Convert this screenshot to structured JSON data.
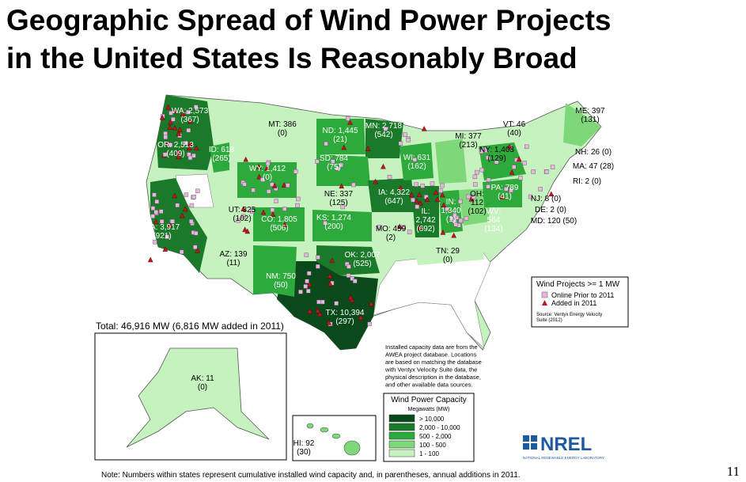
{
  "title_lines": [
    "Geographic Spread of Wind Power Projects",
    "in the United States Is Reasonably Broad"
  ],
  "total": "Total:  46,916 MW (6,816 MW added in 2011)",
  "states": [
    {
      "lines": [
        "WA: 2,573",
        "(367)"
      ]
    },
    {
      "lines": [
        "OR: 2,513",
        "(409)"
      ]
    },
    {
      "lines": [
        "ID: 618",
        "(265)"
      ]
    },
    {
      "lines": [
        "MT: 386",
        "(0)"
      ]
    },
    {
      "lines": [
        "WY: 1,412",
        "(0)"
      ]
    },
    {
      "lines": [
        "ND: 1,445",
        "(21)"
      ]
    },
    {
      "lines": [
        "MN: 2,718",
        "(542)"
      ]
    },
    {
      "lines": [
        "SD: 784",
        "(75)"
      ]
    },
    {
      "lines": [
        "WI: 631",
        "(162)"
      ]
    },
    {
      "lines": [
        "MI: 377",
        "(213)"
      ]
    },
    {
      "lines": [
        "NY: 1,403",
        "(129)"
      ]
    },
    {
      "lines": [
        "VT: 46",
        "(40)"
      ]
    },
    {
      "lines": [
        "ME: 397",
        "(131)"
      ]
    },
    {
      "lines": [
        "NH: 26 (0)"
      ]
    },
    {
      "lines": [
        "MA: 47 (28)"
      ]
    },
    {
      "lines": [
        "RI: 2 (0)"
      ]
    },
    {
      "lines": [
        "NJ: 8 (0)"
      ]
    },
    {
      "lines": [
        "DE: 2 (0)"
      ]
    },
    {
      "lines": [
        "MD: 120 (50)"
      ]
    },
    {
      "lines": [
        "PA: 789",
        "(41)"
      ]
    },
    {
      "lines": [
        "WV:",
        "564",
        "(134)"
      ]
    },
    {
      "lines": [
        "OH:",
        "112",
        "(102)"
      ]
    },
    {
      "lines": [
        "IN:",
        "1,340",
        "(1)"
      ]
    },
    {
      "lines": [
        "IL:",
        "2,742",
        "(692)"
      ]
    },
    {
      "lines": [
        "IA: 4,322",
        "(647)"
      ]
    },
    {
      "lines": [
        "NE: 337",
        "(125)"
      ]
    },
    {
      "lines": [
        "UT: 325",
        "(102)"
      ]
    },
    {
      "lines": [
        "CO: 1,805",
        "(506)"
      ]
    },
    {
      "lines": [
        "KS: 1,274",
        "(200)"
      ]
    },
    {
      "lines": [
        "MO: 459",
        "(2)"
      ]
    },
    {
      "lines": [
        "CA: 3,917",
        "(921)"
      ]
    },
    {
      "lines": [
        "AZ: 139",
        "(11)"
      ]
    },
    {
      "lines": [
        "NM: 750",
        "(50)"
      ]
    },
    {
      "lines": [
        "OK: 2,007",
        "(525)"
      ]
    },
    {
      "lines": [
        "TN: 29",
        "(0)"
      ]
    },
    {
      "lines": [
        "TX: 10,394",
        "(297)"
      ]
    },
    {
      "lines": [
        "AK: 11",
        "(0)"
      ]
    },
    {
      "lines": [
        "HI: 92",
        "(30)"
      ]
    }
  ],
  "projects_legend": {
    "title": "Wind Projects >= 1 MW",
    "items": [
      {
        "label": "Online Prior to 2011",
        "color": "#e8b4e0"
      },
      {
        "label": "Added in 2011",
        "color": "#c0141e"
      }
    ],
    "source_lines": [
      "Source: Ventyx Energy Velocity",
      "Suite (2012)"
    ]
  },
  "method_note": [
    "Installed capacity data are from the",
    "AWEA project database.  Locations",
    "are based on matching the database",
    "with Ventyx Velocity Suite data, the",
    "physical description in the database,",
    "and other available data sources."
  ],
  "capacity_legend": {
    "title": "Wind Power Capacity",
    "subtitle": "Megawatts (MW)",
    "items": [
      {
        "label": "> 10,000",
        "color": "#0a4a1a"
      },
      {
        "label": "2,000 - 10,000",
        "color": "#1a7a2a"
      },
      {
        "label": "500 - 2,000",
        "color": "#2eaa3c"
      },
      {
        "label": "100 - 500",
        "color": "#7ed87a"
      },
      {
        "label": "1 - 100",
        "color": "#c6f2c0"
      }
    ]
  },
  "logo": "NREL",
  "logo_sub": "NATIONAL RENEWABLE ENERGY LABORATORY",
  "footnote": "Note:  Numbers within states represent cumulative installed wind capacity and, in parentheses, annual additions in 2011.",
  "page_number": "11"
}
